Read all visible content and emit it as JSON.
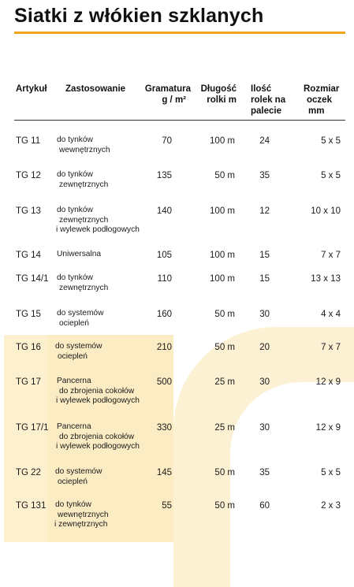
{
  "title": "Siatki z włókien szklanych",
  "headers": {
    "artykul": "Artykuł",
    "zastosowanie": "Zastosowanie",
    "gramatura_1": "Gramatura",
    "gramatura_2": "g / m²",
    "dlugosc_1": "Długość",
    "dlugosc_2": "rolki m",
    "ilosc_1": "Ilość",
    "ilosc_2": "rolek na",
    "ilosc_3": "palecie",
    "rozmiar_1": "Rozmiar",
    "rozmiar_2": "oczek",
    "rozmiar_3": "mm"
  },
  "rows": [
    {
      "art": "TG 11",
      "desc": [
        "do tynków",
        "wewnętrznych"
      ],
      "gram": "70",
      "len": "100 m",
      "qty": "24",
      "mesh": "5 x 5"
    },
    {
      "art": "TG 12",
      "desc": [
        "do tynków",
        "zewnętrznych"
      ],
      "gram": "135",
      "len": "50 m",
      "qty": "35",
      "mesh": "5 x 5"
    },
    {
      "art": "TG 13",
      "desc": [
        "do tynków",
        "zewnętrznych",
        "i wylewek podłogowych"
      ],
      "gram": "140",
      "len": "100 m",
      "qty": "12",
      "mesh": "10 x 10"
    },
    {
      "art": "TG 14",
      "desc": [
        "Uniwersalna"
      ],
      "gram": "105",
      "len": "100 m",
      "qty": "15",
      "mesh": "7 x 7"
    },
    {
      "art": "TG 14/1",
      "desc": [
        "do tynków",
        "zewnętrznych"
      ],
      "gram": "110",
      "len": "100 m",
      "qty": "15",
      "mesh": "13 x 13"
    },
    {
      "art": "TG 15",
      "desc": [
        "do systemów",
        "ociepleń"
      ],
      "gram": "160",
      "len": "50 m",
      "qty": "30",
      "mesh": "4 x 4"
    },
    {
      "art": "TG 16",
      "desc": [
        "do systemów",
        "ociepleń"
      ],
      "gram": "210",
      "len": "50 m",
      "qty": "20",
      "mesh": "7 x 7"
    },
    {
      "art": "TG 17",
      "desc": [
        "Pancerna",
        "do zbrojenia cokołów",
        "i wylewek podłogowych"
      ],
      "gram": "500",
      "len": "25 m",
      "qty": "30",
      "mesh": "12 x 9"
    },
    {
      "art": "TG 17/1",
      "desc": [
        "Pancerna",
        "do zbrojenia cokołów",
        "i wylewek podłogowych"
      ],
      "gram": "330",
      "len": "25 m",
      "qty": "30",
      "mesh": "12 x 9"
    },
    {
      "art": "TG 22",
      "desc": [
        "do systemów",
        "ociepleń"
      ],
      "gram": "145",
      "len": "50 m",
      "qty": "35",
      "mesh": "5 x 5"
    },
    {
      "art": "TG 131",
      "desc": [
        "do tynków",
        "wewnętrznych",
        "i zewnętrznych"
      ],
      "gram": "55",
      "len": "50 m",
      "qty": "60",
      "mesh": "2 x 3"
    }
  ]
}
